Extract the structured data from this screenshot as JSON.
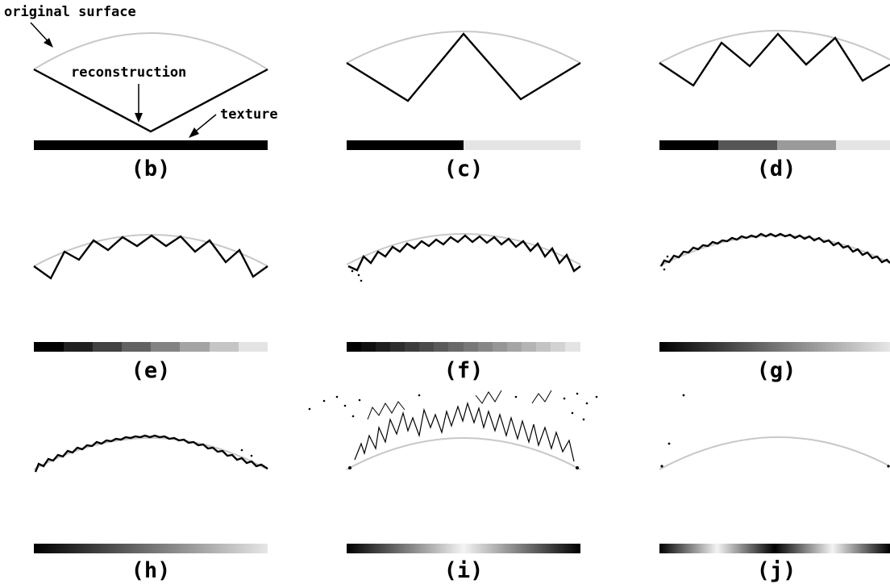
{
  "annotations": {
    "original_surface": "original surface",
    "reconstruction": "reconstruction",
    "texture": "texture"
  },
  "panels": [
    {
      "id": "b",
      "label": "(b)",
      "texture_stripes": [
        "#000000"
      ]
    },
    {
      "id": "c",
      "label": "(c)",
      "texture_stripes": [
        "#000000",
        "#e4e4e4"
      ]
    },
    {
      "id": "d",
      "label": "(d)",
      "texture_stripes": [
        "#000000",
        "#555555",
        "#9a9a9a",
        "#e4e4e4"
      ]
    },
    {
      "id": "e",
      "label": "(e)",
      "texture_stripes": [
        "#000000",
        "#202020",
        "#414141",
        "#626262",
        "#838383",
        "#a4a4a4",
        "#c5c5c5",
        "#e4e4e4"
      ]
    },
    {
      "id": "f",
      "label": "(f)",
      "texture_stripes": [
        "#000000",
        "#0f0f0f",
        "#1e1e1e",
        "#2d2d2d",
        "#3c3c3c",
        "#4b4b4b",
        "#5a5a5a",
        "#696969",
        "#787878",
        "#878787",
        "#969696",
        "#a5a5a5",
        "#b4b4b4",
        "#c3c3c3",
        "#d2d2d2",
        "#e4e4e4"
      ]
    },
    {
      "id": "g",
      "label": "(g)",
      "texture_stripes": "gradient-black-to-light"
    },
    {
      "id": "h",
      "label": "(h)",
      "texture_stripes": "gradient-black-to-light"
    },
    {
      "id": "i",
      "label": "(i)",
      "texture_stripes": "gradient-black-white-black"
    },
    {
      "id": "j",
      "label": "(j)",
      "texture_stripes": "gradient-black-white-black-white-black"
    }
  ]
}
